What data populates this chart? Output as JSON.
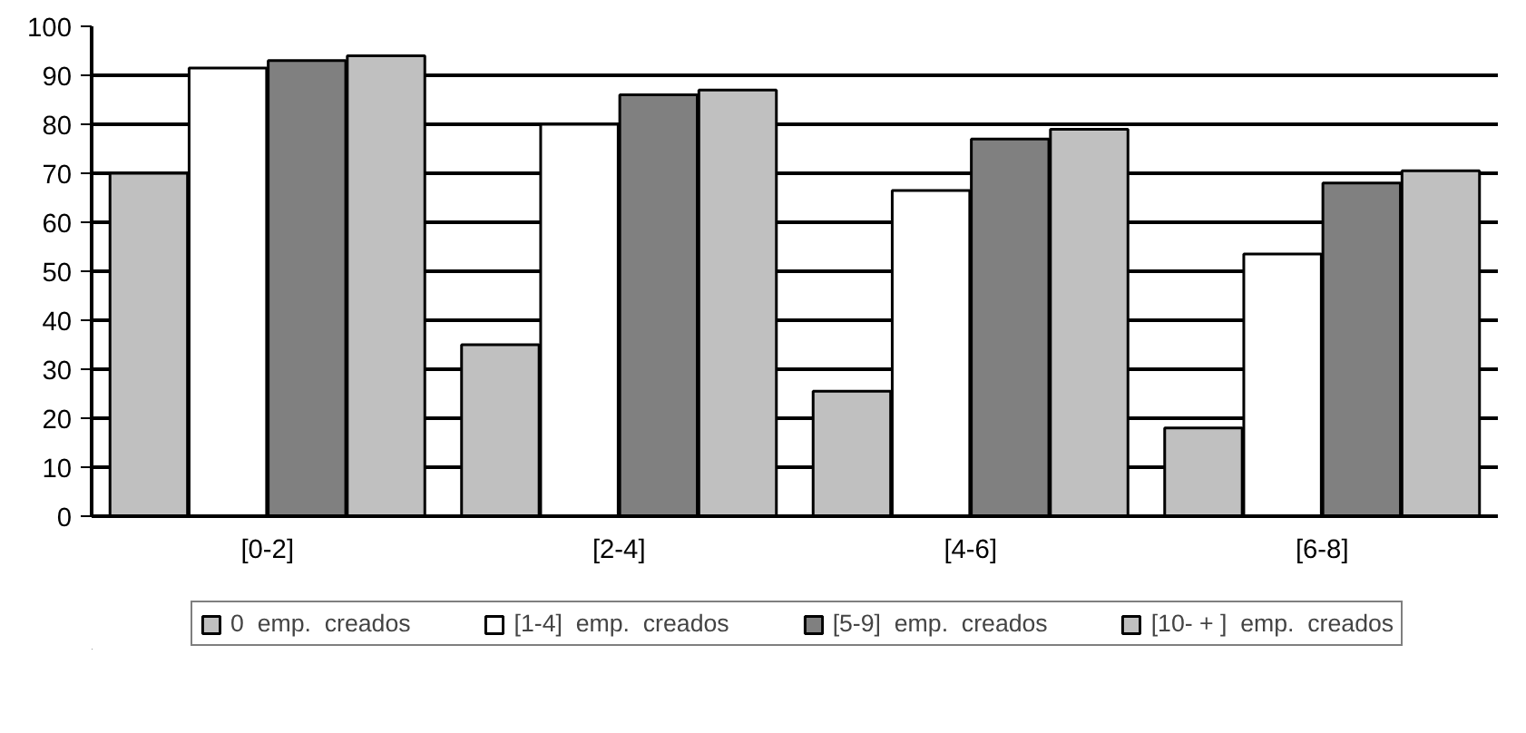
{
  "chart_data": {
    "type": "bar",
    "categories": [
      "[0-2]",
      "[2-4]",
      "[4-6]",
      "[6-8]"
    ],
    "series": [
      {
        "name": "0  emp.  creados",
        "color": "#c0c0c0",
        "values": [
          70,
          35,
          25.5,
          18
        ]
      },
      {
        "name": "[1-4]  emp.  creados",
        "color": "#ffffff",
        "values": [
          91.5,
          80,
          66.5,
          53.5
        ]
      },
      {
        "name": "[5-9]  emp.  creados",
        "color": "#808080",
        "values": [
          93,
          86,
          77,
          68
        ]
      },
      {
        "name": "[10- + ]  emp.  creados",
        "color": "#c0c0c0",
        "values": [
          94,
          87,
          79,
          70.5
        ]
      }
    ],
    "ylim": [
      0,
      100
    ],
    "yticks": [
      0,
      10,
      20,
      30,
      40,
      50,
      60,
      70,
      80,
      90,
      100
    ],
    "grid": "y",
    "legend": "bottom"
  }
}
